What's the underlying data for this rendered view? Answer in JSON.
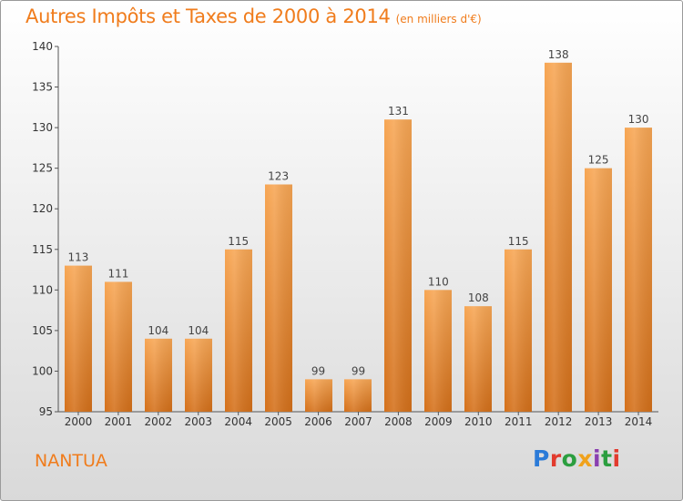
{
  "header": {
    "title": "Autres Impôts et Taxes de 2000 à 2014",
    "unit": "(en milliers d'€)"
  },
  "footer": {
    "city": "NANTUA",
    "brand": "Proxiti"
  },
  "colors": {
    "accent": "#f07c1c",
    "bar_top": "#f7a654",
    "bar_bottom": "#d4701a",
    "axis": "#555555"
  },
  "chart_data": {
    "type": "bar",
    "title": "Autres Impôts et Taxes de 2000 à 2014",
    "subtitle": "(en milliers d'€)",
    "xlabel": "",
    "ylabel": "",
    "categories": [
      "2000",
      "2001",
      "2002",
      "2003",
      "2004",
      "2005",
      "2006",
      "2007",
      "2008",
      "2009",
      "2010",
      "2011",
      "2012",
      "2013",
      "2014"
    ],
    "values": [
      113,
      111,
      104,
      104,
      115,
      123,
      99,
      99,
      131,
      110,
      108,
      115,
      138,
      125,
      130
    ],
    "ylim": [
      95,
      140
    ],
    "yticks": [
      95,
      100,
      105,
      110,
      115,
      120,
      125,
      130,
      135,
      140
    ],
    "grid": false,
    "data_labels": true
  }
}
